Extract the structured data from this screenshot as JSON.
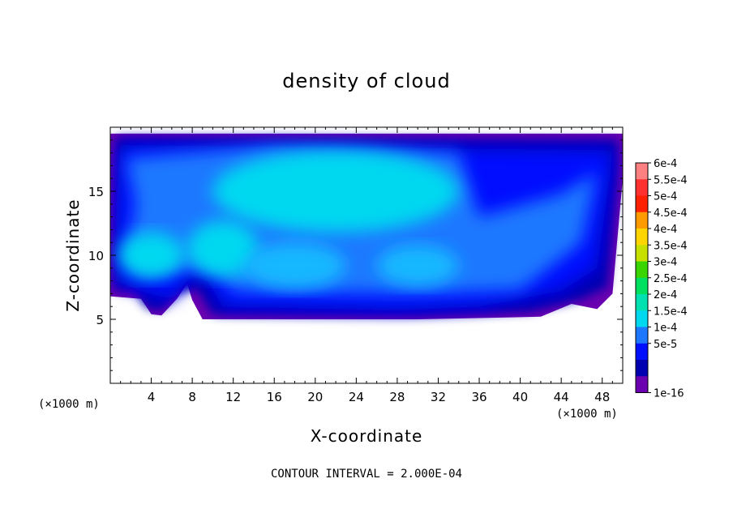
{
  "chart_data": {
    "type": "heatmap",
    "title": "density of cloud",
    "xlabel": "X-coordinate",
    "ylabel": "Z-coordinate",
    "x_unit": "(×1000 m)",
    "footer": "CONTOUR INTERVAL = 2.000E-04",
    "xlim": [
      0,
      50
    ],
    "ylim": [
      0,
      20
    ],
    "x_ticks": [
      4,
      8,
      12,
      16,
      20,
      24,
      28,
      32,
      36,
      40,
      44,
      48
    ],
    "y_ticks": [
      5,
      10,
      15
    ],
    "colorbar": {
      "labels": [
        "6e-4",
        "5.5e-4",
        "5e-4",
        "4.5e-4",
        "4e-4",
        "3.5e-4",
        "3e-4",
        "2.5e-4",
        "2e-4",
        "1.5e-4",
        "1e-4",
        "5e-5",
        "1e-16"
      ],
      "colors": [
        "#ff8080",
        "#ff3030",
        "#ff2000",
        "#ff9a00",
        "#ffd500",
        "#c8e000",
        "#3ad400",
        "#00e060",
        "#00e0b0",
        "#00d8f0",
        "#1e78ff",
        "#0010ff",
        "#0000b0",
        "#6a00b0"
      ]
    },
    "cloud_region": {
      "z_base_km": 5,
      "z_top_km": 19.5,
      "peak_density": "2e-4",
      "peak_region_x_km": [
        9,
        35
      ],
      "peak_region_z_km": [
        11,
        18
      ]
    }
  }
}
